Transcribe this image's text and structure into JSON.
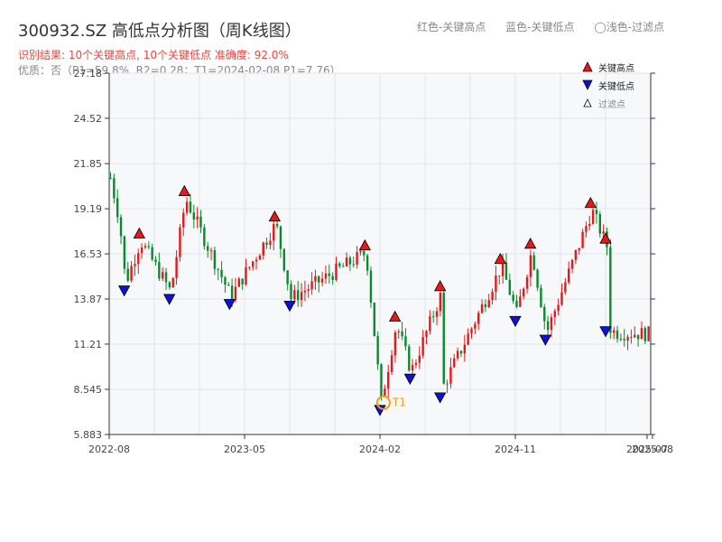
{
  "title": "300932.SZ 高低点分析图（周K线图）",
  "subtitle": "识别结果: 10个关键高点, 10个关键低点  准确度: 92.0%",
  "quality_line": "优质：否（P1=59.8%, R2=0.28；T1=2024-02-08 P1=7.76）",
  "top_legend": {
    "red": "红色-关键高点",
    "blue": "蓝色-关键低点",
    "light": "◯浅色-过滤点"
  },
  "legend": {
    "high": "关键高点",
    "low": "关键低点",
    "filtered": "过滤点"
  },
  "colors": {
    "up": "#e31a1c",
    "down": "#0a8a2e",
    "high_marker": "#e31a1c",
    "low_marker": "#1010d8",
    "t1": "#f39c12",
    "plot_bg": "#f6f8fa"
  },
  "chart_data": {
    "type": "candlestick",
    "ylim": [
      5.883,
      27.18
    ],
    "yticks": [
      "27.18",
      "24.52",
      "21.85",
      "19.19",
      "16.53",
      "13.87",
      "11.21",
      "8.545",
      "5.883"
    ],
    "xticks": [
      "2022-08",
      "2023-05",
      "2024-02",
      "2024-11",
      "2025-07",
      "2025-08"
    ],
    "t1_label": "T1",
    "t1": {
      "date": "2024-02-08",
      "price": 7.76
    },
    "key_highs": [
      {
        "date": "2022-10",
        "price": 17.3
      },
      {
        "date": "2023-01",
        "price": 19.8
      },
      {
        "date": "2023-07",
        "price": 18.3
      },
      {
        "date": "2024-01",
        "price": 16.6
      },
      {
        "date": "2024-03",
        "price": 12.4
      },
      {
        "date": "2024-06",
        "price": 14.2
      },
      {
        "date": "2024-10",
        "price": 15.8
      },
      {
        "date": "2024-12",
        "price": 16.7
      },
      {
        "date": "2025-04",
        "price": 19.1
      },
      {
        "date": "2025-05",
        "price": 17.0
      }
    ],
    "key_lows": [
      {
        "date": "2022-09",
        "price": 14.8
      },
      {
        "date": "2022-12",
        "price": 14.3
      },
      {
        "date": "2023-04",
        "price": 14.0
      },
      {
        "date": "2023-08",
        "price": 13.9
      },
      {
        "date": "2024-02",
        "price": 7.76
      },
      {
        "date": "2024-04",
        "price": 9.6
      },
      {
        "date": "2024-06",
        "price": 8.5
      },
      {
        "date": "2024-11",
        "price": 13.0
      },
      {
        "date": "2025-01",
        "price": 11.9
      },
      {
        "date": "2025-05",
        "price": 12.4
      }
    ]
  }
}
